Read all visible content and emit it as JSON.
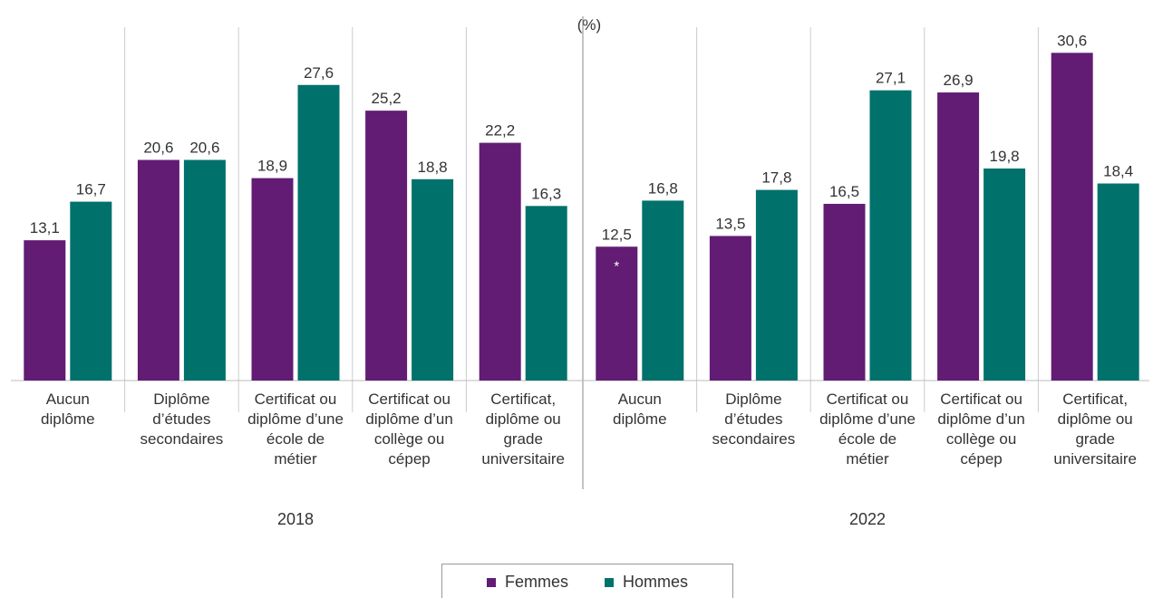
{
  "chart_data": {
    "type": "bar",
    "unit_label": "(%)",
    "categories": [
      "Aucun diplôme",
      "Diplôme d’études secondaires",
      "Certificat ou diplôme d’une école de métier",
      "Certificat ou diplôme d’un collège ou cépep",
      "Certificat, diplôme ou grade universitaire",
      "Aucun diplôme",
      "Diplôme d’études secondaires",
      "Certificat ou diplôme d’une école de métier",
      "Certificat ou diplôme d’un collège ou cépep",
      "Certificat, diplôme ou grade universitaire"
    ],
    "groups": [
      "2018",
      "2022"
    ],
    "series": [
      {
        "name": "Femmes",
        "color": "#621c74",
        "values": [
          13.1,
          20.6,
          18.9,
          25.2,
          22.2,
          12.5,
          13.5,
          16.5,
          26.9,
          30.6
        ],
        "value_labels": [
          "13,1",
          "20,6",
          "18,9",
          "25,2",
          "22,2",
          "12,5",
          "13,5",
          "16,5",
          "26,9",
          "30,6"
        ]
      },
      {
        "name": "Hommes",
        "color": "#00716b",
        "values": [
          16.7,
          20.6,
          27.6,
          18.8,
          16.3,
          16.8,
          17.8,
          27.1,
          19.8,
          18.4
        ],
        "value_labels": [
          "16,7",
          "20,6",
          "27,6",
          "18,8",
          "16,3",
          "16,8",
          "17,8",
          "27,1",
          "19,8",
          "18,4"
        ]
      }
    ],
    "annotations": [
      "*"
    ],
    "legend": "bottom"
  }
}
